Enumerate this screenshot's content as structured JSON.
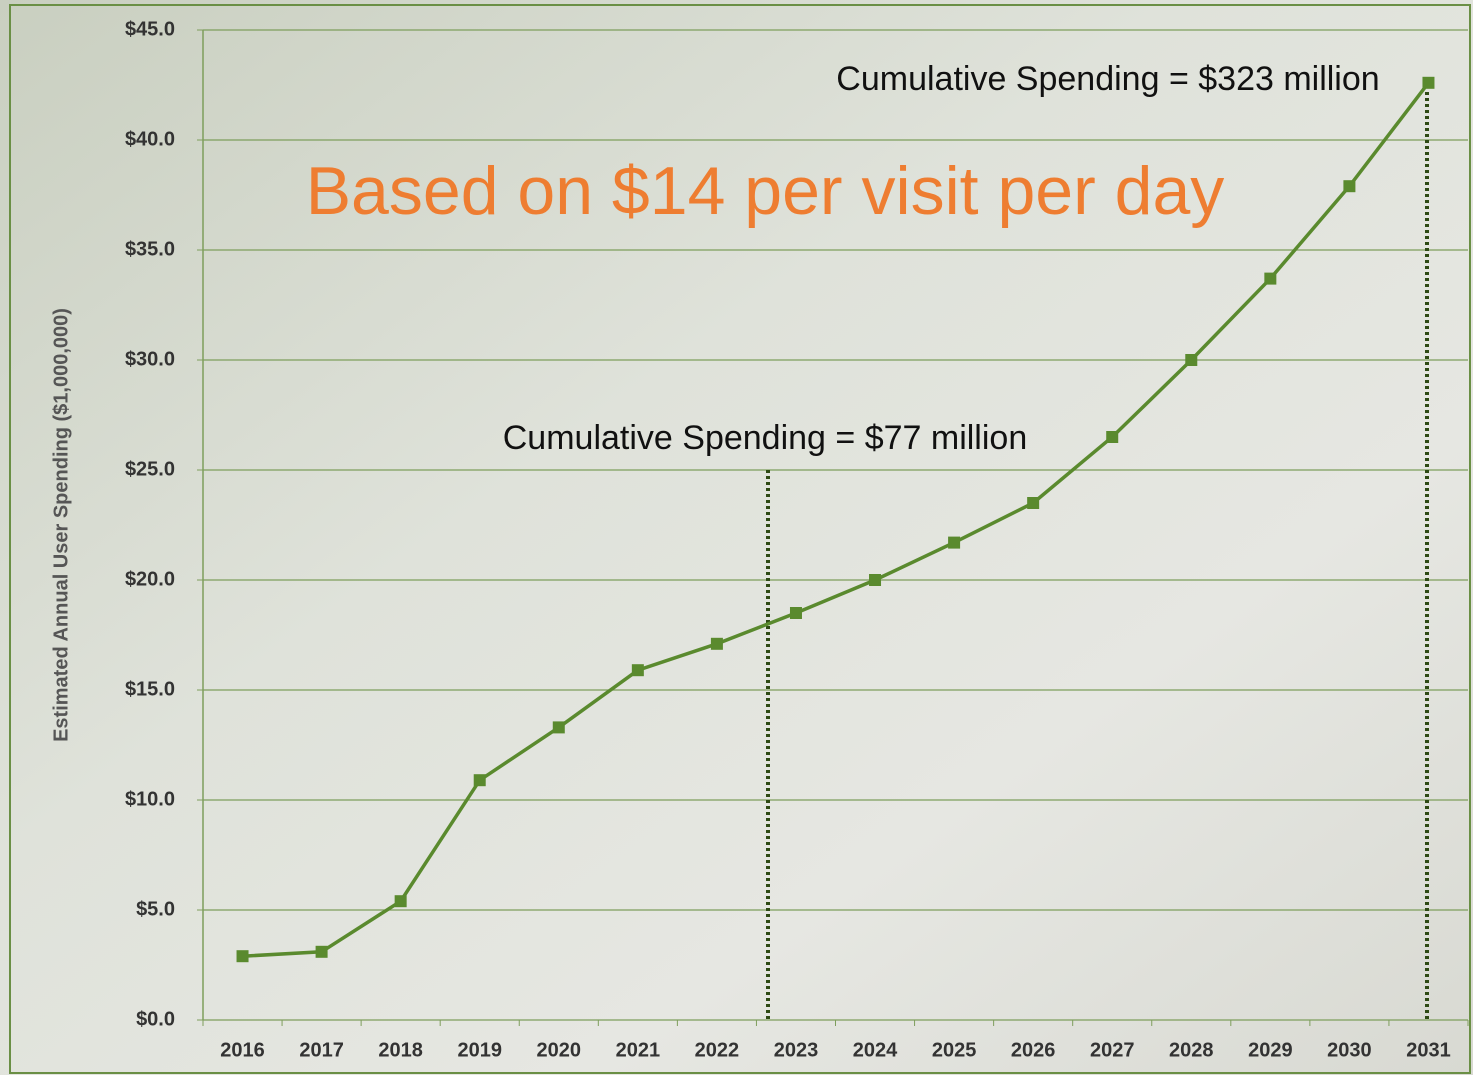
{
  "chart_data": {
    "type": "line",
    "subtitle": "Based on $14 per visit per day",
    "y_label": "Estimated Annual User Spending ($1,000,000)",
    "annotations": [
      "Cumulative Spending = $77 million",
      "Cumulative Spending = $323 million"
    ],
    "categories": [
      "2016",
      "2017",
      "2018",
      "2019",
      "2020",
      "2021",
      "2022",
      "2023",
      "2024",
      "2025",
      "2026",
      "2027",
      "2028",
      "2029",
      "2030",
      "2031"
    ],
    "series": [
      {
        "color": "#5a8a2e",
        "values": [
          2.9,
          3.1,
          5.4,
          10.9,
          13.3,
          15.9,
          17.1,
          18.5,
          20.0,
          21.7,
          23.5,
          26.5,
          30.0,
          33.7,
          37.9,
          42.6
        ]
      }
    ],
    "ylim": [
      0,
      45
    ],
    "yticks": [
      {
        "value": 0,
        "label": "$0.0"
      },
      {
        "value": 5,
        "label": "$5.0"
      },
      {
        "value": 10,
        "label": "$10.0"
      },
      {
        "value": 15,
        "label": "$15.0"
      },
      {
        "value": 20,
        "label": "$20.0"
      },
      {
        "value": 25,
        "label": "$25.0"
      },
      {
        "value": 30,
        "label": "$30.0"
      },
      {
        "value": 35,
        "label": "$35.0"
      },
      {
        "value": 40,
        "label": "$40.0"
      },
      {
        "value": 45,
        "label": "$45.0"
      }
    ],
    "grid": true
  }
}
